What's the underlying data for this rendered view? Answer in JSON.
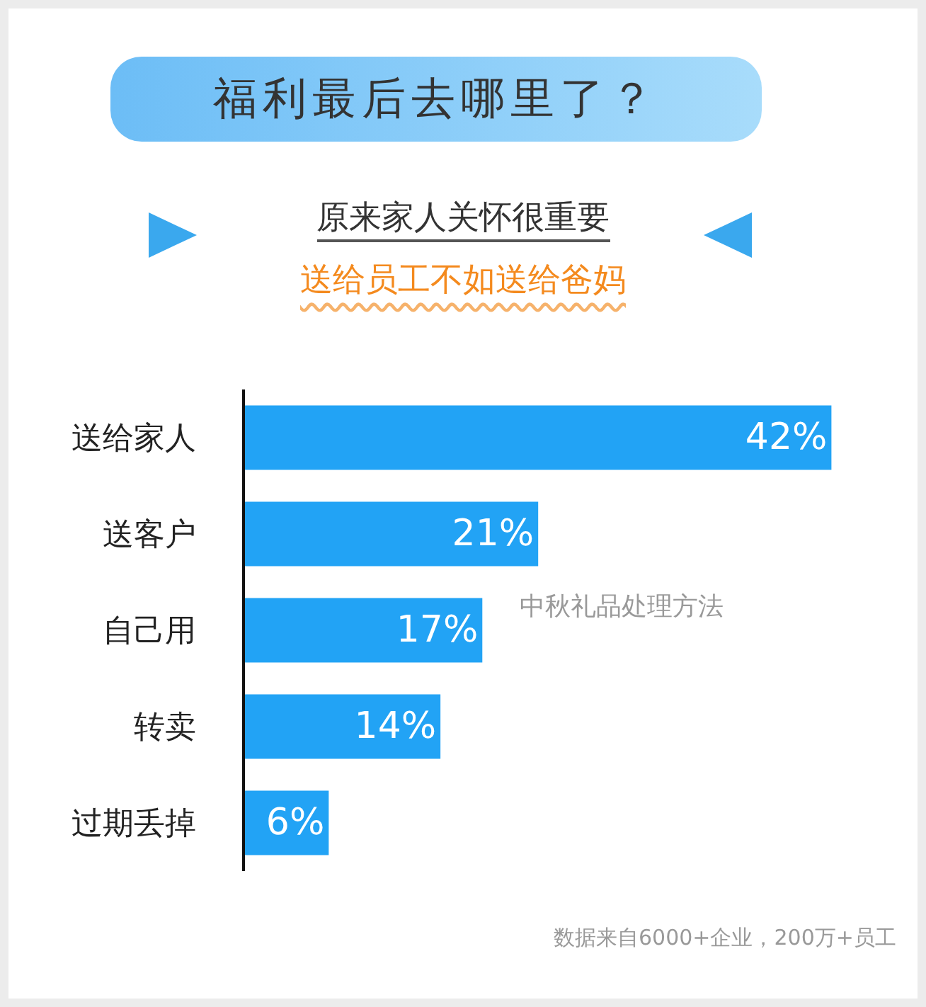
{
  "chart_data": {
    "type": "bar",
    "orientation": "horizontal",
    "title": "福利最后去哪里了？",
    "subtitle": "原来家人关怀很重要",
    "categories": [
      "送给家人",
      "送客户",
      "自己用",
      "转卖",
      "过期丢掉"
    ],
    "values": [
      42,
      21,
      17,
      14,
      6
    ],
    "color": "#22a3f5",
    "value_labels": [
      "42%",
      "21%",
      "17%",
      "14%",
      "6%"
    ],
    "annotations": [
      "送给员工不如送给爸妈",
      "中秋礼品处理方法",
      "数据来自6000+企业，200万+员工"
    ],
    "grid": false,
    "legend": false,
    "tick_labels": "y"
  }
}
